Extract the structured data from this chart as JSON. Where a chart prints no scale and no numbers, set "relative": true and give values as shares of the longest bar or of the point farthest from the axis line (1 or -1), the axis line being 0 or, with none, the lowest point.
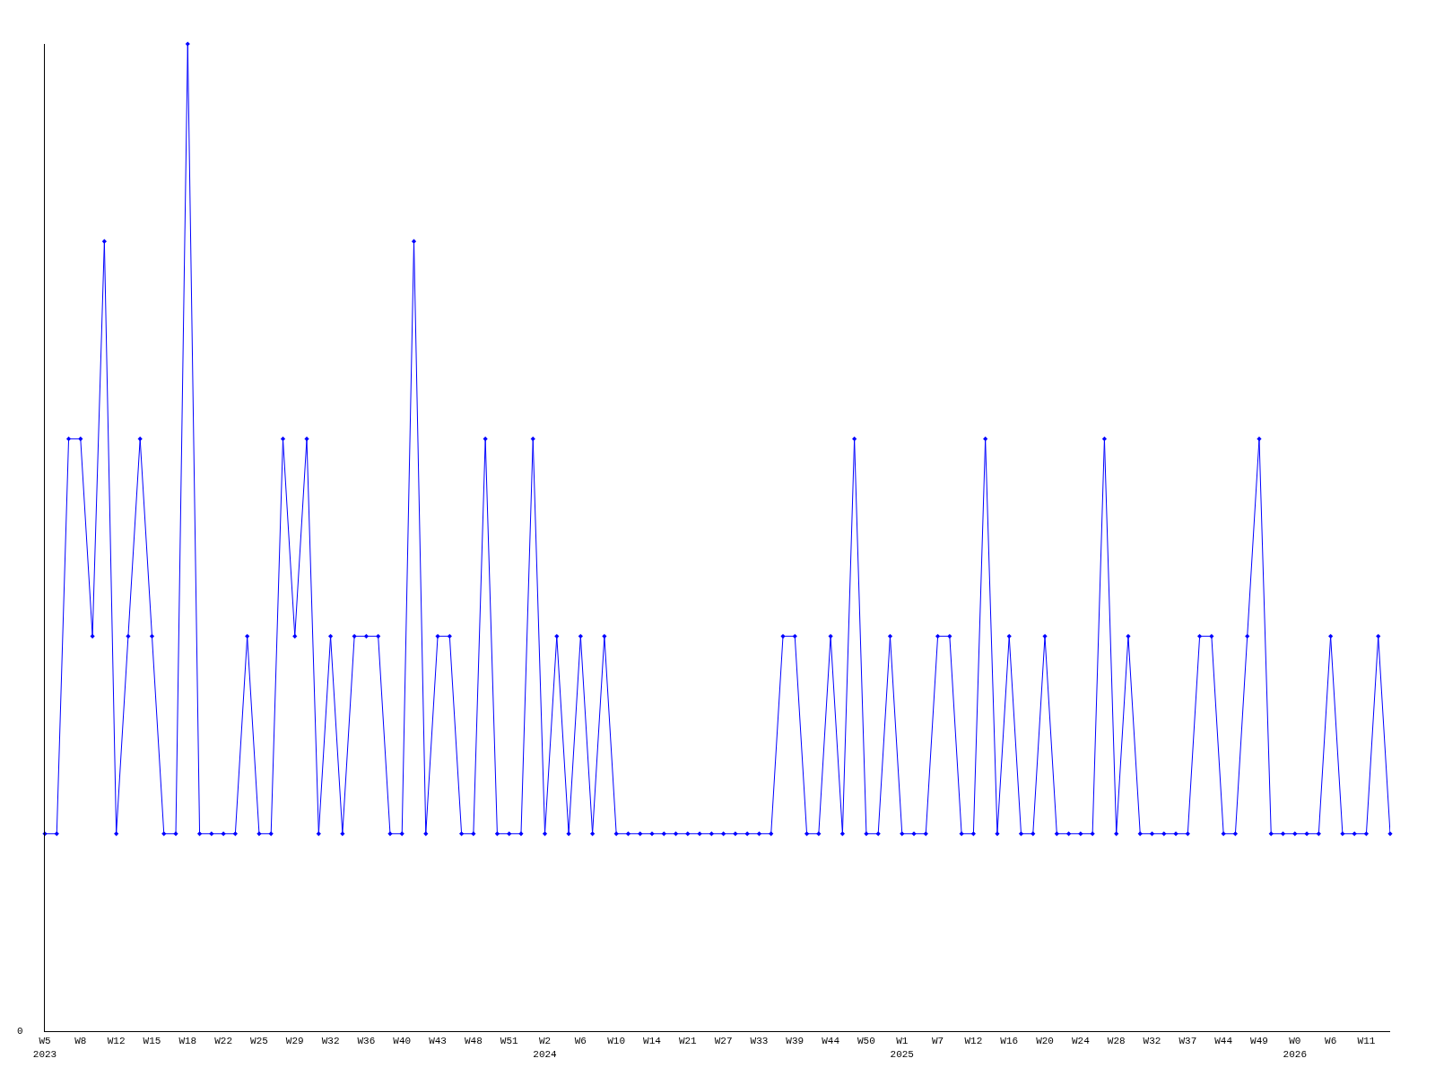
{
  "chart_data": {
    "type": "line",
    "relative": true,
    "marker": "diamond",
    "line_style": "solid",
    "legend": false,
    "categories": [
      "W5\n2023",
      null,
      null,
      "W8",
      null,
      null,
      "W12",
      null,
      null,
      "W15",
      null,
      null,
      "W18",
      null,
      null,
      "W22",
      null,
      null,
      "W25",
      null,
      null,
      "W29",
      null,
      null,
      "W32",
      null,
      null,
      "W36",
      null,
      null,
      "W40",
      null,
      null,
      "W43",
      null,
      null,
      "W48",
      null,
      null,
      "W51",
      null,
      null,
      "W2\n2024",
      null,
      null,
      "W6",
      null,
      null,
      "W10",
      null,
      null,
      "W14",
      null,
      null,
      "W21",
      null,
      null,
      "W27",
      null,
      null,
      "W33",
      null,
      null,
      "W39",
      null,
      null,
      "W44",
      null,
      null,
      "W50",
      null,
      null,
      "W1\n2025",
      null,
      null,
      "W7",
      null,
      null,
      "W12",
      null,
      null,
      "W16",
      null,
      null,
      "W20",
      null,
      null,
      "W24",
      null,
      null,
      "W28",
      null,
      null,
      "W32",
      null,
      null,
      "W37",
      null,
      null,
      "W44",
      null,
      null,
      "W49",
      null,
      null,
      "W0\n2026",
      null,
      null,
      "W6",
      null,
      null,
      "W11",
      null,
      null
    ],
    "series": [
      {
        "color": "#0000ff",
        "values": [
          0.2,
          0.2,
          0.6,
          0.6,
          0.4,
          0.8,
          0.2,
          0.4,
          0.6,
          0.4,
          0.2,
          0.2,
          1.0,
          0.2,
          0.2,
          0.2,
          0.2,
          0.4,
          0.2,
          0.2,
          0.6,
          0.4,
          0.6,
          0.2,
          0.4,
          0.2,
          0.4,
          0.4,
          0.4,
          0.2,
          0.2,
          0.8,
          0.2,
          0.4,
          0.4,
          0.2,
          0.2,
          0.6,
          0.2,
          0.2,
          0.2,
          0.6,
          0.2,
          0.4,
          0.2,
          0.4,
          0.2,
          0.4,
          0.2,
          0.2,
          0.2,
          0.2,
          0.2,
          0.2,
          0.2,
          0.2,
          0.2,
          0.2,
          0.2,
          0.2,
          0.2,
          0.2,
          0.4,
          0.4,
          0.2,
          0.2,
          0.4,
          0.2,
          0.6,
          0.2,
          0.2,
          0.4,
          0.2,
          0.2,
          0.2,
          0.4,
          0.4,
          0.2,
          0.2,
          0.6,
          0.2,
          0.4,
          0.2,
          0.2,
          0.4,
          0.2,
          0.2,
          0.2,
          0.2,
          0.6,
          0.2,
          0.4,
          0.2,
          0.2,
          0.2,
          0.2,
          0.2,
          0.4,
          0.4,
          0.2,
          0.2,
          0.4,
          0.6,
          0.2,
          0.2,
          0.2,
          0.2,
          0.2,
          0.4,
          0.2,
          0.2,
          0.2,
          0.4,
          0.2
        ]
      }
    ],
    "annotations": [
      "0"
    ]
  }
}
